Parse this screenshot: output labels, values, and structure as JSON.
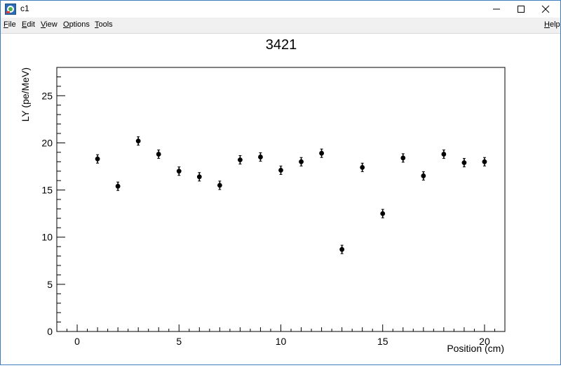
{
  "window": {
    "title": "c1",
    "icon": "root-canvas-icon",
    "controls": [
      "minimize-icon",
      "maximize-icon",
      "close-icon"
    ]
  },
  "menu": {
    "items": [
      "File",
      "Edit",
      "View",
      "Options",
      "Tools"
    ],
    "help": "Help"
  },
  "chart_data": {
    "type": "scatter",
    "title": "3421",
    "xlabel": "Position (cm)",
    "ylabel": "LY (pe/MeV)",
    "xlim": [
      -1,
      21
    ],
    "ylim": [
      0,
      28
    ],
    "xticks": [
      0,
      5,
      10,
      15,
      20
    ],
    "yticks": [
      0,
      5,
      10,
      15,
      20,
      25
    ],
    "grid": false,
    "marker_color": "#000000",
    "x": [
      1,
      2,
      3,
      4,
      5,
      6,
      7,
      8,
      9,
      10,
      11,
      12,
      13,
      14,
      15,
      16,
      17,
      18,
      19,
      20
    ],
    "y": [
      18.3,
      15.4,
      20.2,
      18.8,
      17.0,
      16.4,
      15.5,
      18.2,
      18.5,
      17.1,
      18.0,
      18.9,
      8.7,
      17.4,
      12.5,
      18.4,
      16.5,
      18.8,
      17.9,
      18.0
    ],
    "yerr": [
      0.45,
      0.45,
      0.45,
      0.45,
      0.45,
      0.45,
      0.45,
      0.45,
      0.45,
      0.45,
      0.45,
      0.45,
      0.45,
      0.45,
      0.45,
      0.45,
      0.45,
      0.45,
      0.45,
      0.45
    ]
  }
}
